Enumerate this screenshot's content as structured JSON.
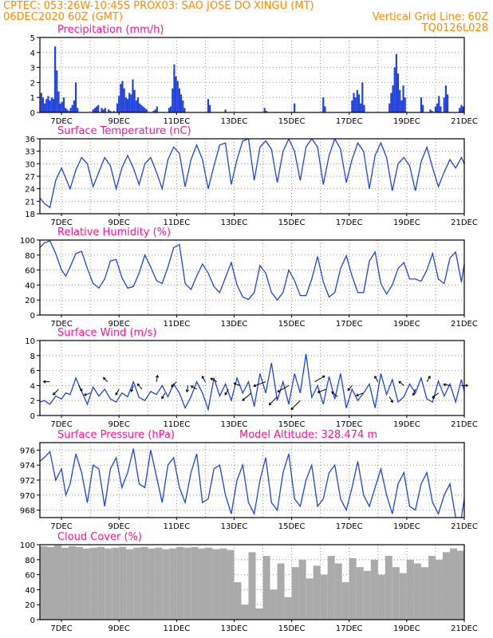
{
  "header": {
    "line1": "CPTEC:   053:26W-10:45S   PROX03: SAO JOSE DO XINGU (MT)",
    "line2_left": "06DEC2020 60Z (GMT)",
    "line2_right": "Vertical Grid Line: 60Z",
    "line3_right": "TQ0126L028"
  },
  "colors": {
    "header": "#ff8c00",
    "title": "#ff1493",
    "line": "#2244dd",
    "cloud": "#aaaaaa"
  },
  "x_labels": [
    "7DEC",
    "9DEC",
    "11DEC",
    "13DEC",
    "15DEC",
    "17DEC",
    "19DEC",
    "21DEC"
  ],
  "chart_data": [
    {
      "type": "bar",
      "title": "Precipitation (mm/h)",
      "ylim": [
        0,
        5
      ],
      "yticks": [
        0,
        1,
        2,
        3,
        4,
        5
      ],
      "x_range_days": [
        6.25,
        21
      ],
      "x": [
        6.3,
        6.36,
        6.42,
        6.48,
        6.54,
        6.6,
        6.66,
        6.72,
        6.78,
        6.84,
        6.9,
        6.96,
        7.02,
        7.08,
        7.14,
        7.2,
        7.26,
        7.32,
        7.38,
        7.44,
        7.5,
        7.56,
        8.1,
        8.16,
        8.22,
        8.28,
        8.4,
        8.46,
        8.52,
        8.64,
        8.7,
        8.82,
        8.94,
        9.0,
        9.06,
        9.12,
        9.18,
        9.24,
        9.3,
        9.36,
        9.42,
        9.48,
        9.54,
        9.6,
        9.66,
        9.72,
        9.78,
        9.84,
        9.9,
        9.96,
        10.2,
        10.26,
        10.32,
        10.74,
        10.8,
        10.86,
        10.92,
        10.98,
        11.04,
        11.1,
        11.16,
        11.22,
        11.28,
        12.1,
        12.16,
        12.7,
        14.06,
        14.12,
        15.1,
        16.1,
        16.16,
        17.1,
        17.16,
        17.22,
        17.28,
        17.34,
        17.4,
        17.46,
        17.52,
        18.4,
        18.46,
        18.52,
        18.58,
        18.64,
        18.7,
        18.76,
        18.82,
        18.88,
        18.94,
        19.5,
        19.56,
        19.82,
        19.88,
        20.0,
        20.06,
        20.12,
        20.18,
        20.3,
        20.36,
        20.42,
        20.84,
        20.9,
        20.96
      ],
      "values": [
        1.3,
        1.0,
        0.6,
        0.9,
        1.1,
        0.8,
        1.0,
        0.9,
        4.4,
        2.8,
        1.4,
        0.6,
        0.7,
        1.0,
        0.3,
        0.2,
        0.1,
        0.3,
        0.5,
        0.8,
        2.0,
        0.3,
        0.2,
        0.3,
        0.4,
        0.5,
        0.3,
        0.2,
        0.3,
        0.2,
        0.1,
        0.1,
        0.6,
        1.1,
        1.9,
        2.1,
        1.6,
        1.0,
        0.9,
        1.3,
        1.2,
        2.2,
        1.5,
        0.8,
        1.0,
        0.6,
        0.5,
        0.4,
        0.3,
        0.2,
        0.1,
        0.2,
        0.4,
        0.3,
        0.4,
        1.6,
        3.2,
        2.4,
        2.1,
        1.6,
        1.2,
        0.8,
        0.3,
        0.9,
        0.5,
        0.2,
        0.3,
        0.1,
        0.6,
        1.0,
        0.4,
        0.8,
        1.3,
        1.0,
        1.5,
        1.2,
        0.6,
        2.0,
        0.5,
        0.6,
        1.3,
        1.8,
        3.0,
        3.9,
        2.6,
        1.5,
        0.8,
        1.8,
        1.0,
        1.0,
        0.5,
        0.2,
        0.1,
        0.4,
        0.6,
        1.1,
        0.4,
        1.0,
        1.8,
        1.2,
        0.3,
        0.5,
        0.4
      ]
    },
    {
      "type": "line",
      "title": "Surface Temperature (nC)",
      "ylim": [
        18,
        36
      ],
      "yticks": [
        18,
        21,
        24,
        27,
        30,
        33,
        36
      ],
      "x_range_days": [
        6.25,
        21
      ],
      "x": [
        6.25,
        6.4,
        6.6,
        6.8,
        7.0,
        7.15,
        7.3,
        7.5,
        7.7,
        7.9,
        8.1,
        8.3,
        8.5,
        8.7,
        8.9,
        9.1,
        9.3,
        9.5,
        9.7,
        9.9,
        10.1,
        10.3,
        10.5,
        10.7,
        10.9,
        11.1,
        11.3,
        11.5,
        11.7,
        11.9,
        12.1,
        12.3,
        12.5,
        12.7,
        12.9,
        13.1,
        13.3,
        13.5,
        13.7,
        13.9,
        14.1,
        14.3,
        14.5,
        14.7,
        14.9,
        15.1,
        15.3,
        15.5,
        15.7,
        15.9,
        16.1,
        16.3,
        16.5,
        16.7,
        16.9,
        17.1,
        17.3,
        17.5,
        17.7,
        17.9,
        18.1,
        18.3,
        18.5,
        18.7,
        18.9,
        19.1,
        19.3,
        19.5,
        19.7,
        19.9,
        20.1,
        20.3,
        20.5,
        20.7,
        20.9,
        21.0
      ],
      "values": [
        21.8,
        20.5,
        19.5,
        26.0,
        29.0,
        26.5,
        24.0,
        28.5,
        31.5,
        30.0,
        24.5,
        28.0,
        31.5,
        29.5,
        24.0,
        29.0,
        32.0,
        29.0,
        25.0,
        30.0,
        31.5,
        28.0,
        24.0,
        31.0,
        34.0,
        32.5,
        24.5,
        31.0,
        34.5,
        31.0,
        24.0,
        29.5,
        34.5,
        35.0,
        25.0,
        31.0,
        35.5,
        36.0,
        26.0,
        34.0,
        35.5,
        33.5,
        25.5,
        33.0,
        36.0,
        33.0,
        26.0,
        34.0,
        36.0,
        34.0,
        25.0,
        32.0,
        36.0,
        33.5,
        25.5,
        31.0,
        35.0,
        33.0,
        24.0,
        32.0,
        35.0,
        31.5,
        23.5,
        30.0,
        31.5,
        29.5,
        23.5,
        30.5,
        34.0,
        29.0,
        24.5,
        28.0,
        31.0,
        29.0,
        31.5,
        30.0
      ]
    },
    {
      "type": "line",
      "title": "Relative Humidity (%)",
      "ylim": [
        0,
        100
      ],
      "yticks": [
        0,
        20,
        40,
        60,
        80,
        100
      ],
      "x_range_days": [
        6.25,
        21
      ],
      "x": [
        6.25,
        6.4,
        6.6,
        6.8,
        7.0,
        7.15,
        7.3,
        7.5,
        7.7,
        7.9,
        8.1,
        8.3,
        8.5,
        8.7,
        8.9,
        9.1,
        9.3,
        9.5,
        9.7,
        9.9,
        10.1,
        10.3,
        10.5,
        10.7,
        10.9,
        11.1,
        11.3,
        11.5,
        11.7,
        11.9,
        12.1,
        12.3,
        12.5,
        12.7,
        12.9,
        13.1,
        13.3,
        13.5,
        13.7,
        13.9,
        14.1,
        14.3,
        14.5,
        14.7,
        14.9,
        15.1,
        15.3,
        15.5,
        15.7,
        15.9,
        16.1,
        16.3,
        16.5,
        16.7,
        16.9,
        17.1,
        17.3,
        17.5,
        17.7,
        17.9,
        18.1,
        18.3,
        18.5,
        18.7,
        18.9,
        19.1,
        19.3,
        19.5,
        19.7,
        19.9,
        20.1,
        20.3,
        20.5,
        20.7,
        20.9,
        21.0
      ],
      "values": [
        90,
        96,
        99,
        82,
        60,
        52,
        64,
        82,
        85,
        62,
        42,
        36,
        48,
        72,
        74,
        50,
        36,
        38,
        56,
        80,
        64,
        46,
        42,
        64,
        90,
        94,
        42,
        34,
        52,
        68,
        56,
        38,
        30,
        50,
        70,
        40,
        24,
        21,
        30,
        66,
        56,
        30,
        20,
        30,
        60,
        46,
        26,
        26,
        48,
        78,
        44,
        24,
        30,
        62,
        79,
        52,
        30,
        30,
        72,
        84,
        42,
        28,
        40,
        62,
        70,
        48,
        48,
        45,
        60,
        82,
        48,
        42,
        76,
        84,
        44,
        68
      ]
    },
    {
      "type": "line",
      "title": "Surface Wind (m/s)",
      "ylim": [
        0,
        10
      ],
      "yticks": [
        0,
        2,
        4,
        6,
        8,
        10
      ],
      "x_range_days": [
        6.25,
        21
      ],
      "x": [
        6.25,
        6.4,
        6.6,
        6.8,
        7.0,
        7.15,
        7.3,
        7.5,
        7.7,
        7.9,
        8.1,
        8.3,
        8.5,
        8.7,
        8.9,
        9.1,
        9.3,
        9.5,
        9.7,
        9.9,
        10.1,
        10.3,
        10.5,
        10.7,
        10.9,
        11.1,
        11.3,
        11.5,
        11.7,
        11.9,
        12.1,
        12.3,
        12.5,
        12.7,
        12.9,
        13.1,
        13.3,
        13.5,
        13.7,
        13.9,
        14.1,
        14.3,
        14.5,
        14.7,
        14.9,
        15.1,
        15.3,
        15.5,
        15.7,
        15.9,
        16.1,
        16.3,
        16.5,
        16.7,
        16.9,
        17.1,
        17.3,
        17.5,
        17.7,
        17.9,
        18.1,
        18.3,
        18.5,
        18.7,
        18.9,
        19.1,
        19.3,
        19.5,
        19.7,
        19.9,
        20.1,
        20.3,
        20.5,
        20.7,
        20.9,
        21.0
      ],
      "values": [
        1.8,
        2.0,
        1.5,
        2.6,
        2.2,
        3.0,
        2.8,
        5.0,
        3.2,
        1.5,
        3.8,
        2.6,
        3.5,
        2.2,
        1.8,
        3.0,
        2.5,
        4.5,
        2.4,
        2.0,
        3.2,
        2.8,
        4.0,
        2.5,
        4.2,
        3.0,
        1.0,
        2.5,
        4.5,
        3.0,
        0.8,
        5.0,
        2.6,
        4.2,
        2.0,
        5.0,
        3.0,
        4.5,
        1.2,
        5.6,
        3.0,
        7.0,
        2.0,
        4.5,
        1.5,
        5.6,
        3.0,
        8.2,
        2.4,
        4.0,
        1.5,
        5.2,
        2.2,
        5.6,
        1.0,
        3.5,
        2.0,
        3.0,
        4.2,
        1.0,
        5.6,
        2.8,
        4.8,
        1.8,
        2.5,
        4.2,
        3.0,
        5.0,
        2.2,
        1.8,
        4.6,
        2.6,
        4.2,
        1.8,
        4.8,
        3.2
      ],
      "vectors_x": [
        6.6,
        6.9,
        7.6,
        8.0,
        8.6,
        9.0,
        9.5,
        9.8,
        10.3,
        10.6,
        11.0,
        11.4,
        11.7,
        12.0,
        12.4,
        12.8,
        13.2,
        13.6,
        14.1,
        14.5,
        14.9,
        15.3,
        15.8,
        16.2,
        16.6,
        17.1,
        17.5,
        18.0,
        18.4,
        18.9,
        19.3,
        19.7,
        20.1,
        20.5,
        20.9
      ],
      "vectors_y": [
        4.5,
        3.5,
        4.0,
        3.0,
        4.5,
        3.5,
        4.0,
        3.5,
        4.5,
        3.0,
        4.5,
        4.0,
        3.5,
        4.5,
        4.5,
        3.5,
        4.0,
        3.0,
        4.5,
        2.5,
        4.0,
        2.0,
        4.5,
        3.5,
        2.5,
        4.0,
        3.0,
        4.5,
        2.5,
        4.0,
        3.5,
        4.5,
        3.0,
        4.0,
        4.0
      ],
      "vectors_dir_deg": [
        180,
        225,
        300,
        200,
        135,
        240,
        250,
        130,
        80,
        240,
        225,
        260,
        150,
        120,
        150,
        240,
        160,
        220,
        200,
        225,
        210,
        225,
        30,
        200,
        140,
        230,
        200,
        120,
        300,
        140,
        250,
        60,
        220,
        170,
        0
      ],
      "vectors_len": [
        1.0,
        1.2,
        1.0,
        1.0,
        0.9,
        1.0,
        1.0,
        1.1,
        1.0,
        1.0,
        1.1,
        1.0,
        1.0,
        1.0,
        1.1,
        1.0,
        1.0,
        1.8,
        2.0,
        1.8,
        2.0,
        2.0,
        1.8,
        1.4,
        1.2,
        1.0,
        1.2,
        1.0,
        1.0,
        1.0,
        1.0,
        1.0,
        1.2,
        1.0,
        1.0
      ]
    },
    {
      "type": "line",
      "title": "Surface Pressure (hPa)",
      "annotation": "Model Altitude: 328.474  m",
      "ylim": [
        967,
        977
      ],
      "yticks": [
        968,
        970,
        972,
        974,
        976
      ],
      "x_range_days": [
        6.25,
        21
      ],
      "x": [
        6.25,
        6.4,
        6.6,
        6.8,
        7.0,
        7.15,
        7.3,
        7.5,
        7.7,
        7.9,
        8.1,
        8.3,
        8.5,
        8.7,
        8.9,
        9.1,
        9.3,
        9.5,
        9.7,
        9.9,
        10.1,
        10.3,
        10.5,
        10.7,
        10.9,
        11.1,
        11.3,
        11.5,
        11.7,
        11.9,
        12.1,
        12.3,
        12.5,
        12.7,
        12.9,
        13.1,
        13.3,
        13.5,
        13.7,
        13.9,
        14.1,
        14.3,
        14.5,
        14.7,
        14.9,
        15.1,
        15.3,
        15.5,
        15.7,
        15.9,
        16.1,
        16.3,
        16.5,
        16.7,
        16.9,
        17.1,
        17.3,
        17.5,
        17.7,
        17.9,
        18.1,
        18.3,
        18.5,
        18.7,
        18.9,
        19.1,
        19.3,
        19.5,
        19.7,
        19.9,
        20.1,
        20.3,
        20.5,
        20.7,
        20.9,
        21.0
      ],
      "values": [
        974.5,
        975.0,
        975.8,
        972.0,
        973.5,
        970.0,
        971.5,
        975.5,
        973.0,
        969.0,
        974.0,
        973.5,
        968.5,
        973.5,
        975.0,
        971.0,
        973.0,
        976.2,
        971.5,
        971.0,
        976.0,
        972.5,
        969.0,
        974.0,
        975.0,
        971.0,
        969.0,
        973.0,
        975.5,
        969.0,
        969.5,
        973.5,
        974.0,
        970.0,
        967.5,
        972.0,
        974.0,
        969.0,
        967.5,
        972.0,
        975.0,
        969.0,
        968.0,
        973.0,
        975.5,
        969.5,
        968.5,
        972.0,
        974.0,
        968.5,
        969.5,
        973.0,
        974.0,
        969.5,
        968.0,
        971.0,
        974.5,
        970.0,
        968.5,
        971.0,
        973.5,
        970.0,
        967.5,
        971.5,
        973.0,
        968.5,
        968.0,
        971.5,
        973.0,
        969.0,
        967.5,
        970.0,
        971.5,
        967.0,
        967.0,
        969.5
      ]
    },
    {
      "type": "bar",
      "title": "Cloud Cover (%)",
      "ylim": [
        0,
        100
      ],
      "yticks": [
        0,
        20,
        40,
        60,
        80,
        100
      ],
      "x_range_days": [
        6.25,
        21
      ],
      "x": [
        6.25,
        6.5,
        6.75,
        7.0,
        7.25,
        7.5,
        7.75,
        8.0,
        8.25,
        8.5,
        8.75,
        9.0,
        9.25,
        9.5,
        9.75,
        10.0,
        10.25,
        10.5,
        10.75,
        11.0,
        11.25,
        11.5,
        11.75,
        12.0,
        12.25,
        12.5,
        12.75,
        13.0,
        13.25,
        13.5,
        13.75,
        14.0,
        14.25,
        14.5,
        14.75,
        15.0,
        15.25,
        15.5,
        15.75,
        16.0,
        16.25,
        16.5,
        16.75,
        17.0,
        17.25,
        17.5,
        17.75,
        18.0,
        18.25,
        18.5,
        18.75,
        19.0,
        19.25,
        19.5,
        19.75,
        20.0,
        20.25,
        20.5,
        20.75,
        21.0
      ],
      "values": [
        98,
        97,
        99,
        96,
        98,
        97,
        95,
        96,
        97,
        95,
        96,
        97,
        94,
        96,
        97,
        95,
        96,
        94,
        95,
        97,
        96,
        97,
        95,
        96,
        94,
        95,
        93,
        50,
        20,
        90,
        15,
        85,
        40,
        75,
        30,
        70,
        80,
        55,
        72,
        60,
        85,
        75,
        50,
        82,
        70,
        65,
        80,
        60,
        85,
        70,
        62,
        80,
        75,
        70,
        85,
        80,
        90,
        95,
        92,
        96
      ]
    }
  ]
}
